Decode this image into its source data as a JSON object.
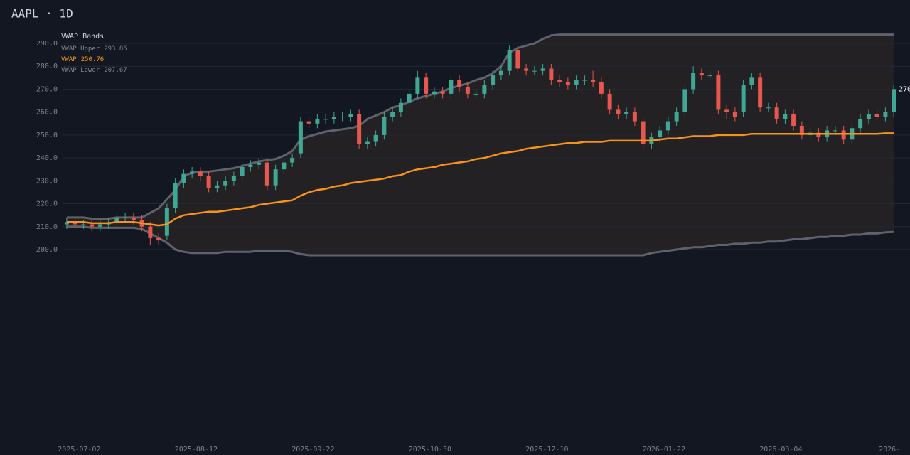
{
  "chart_data": {
    "type": "candlestick",
    "title": "AAPL · 1D",
    "legend_title": "VWAP Bands",
    "categories": [
      null,
      null,
      "2025-07-02",
      null,
      null,
      null,
      null,
      null,
      null,
      null,
      null,
      null,
      null,
      null,
      null,
      null,
      "2025-08-12",
      null,
      null,
      null,
      null,
      null,
      null,
      null,
      null,
      null,
      null,
      null,
      null,
      null,
      "2025-09-22",
      null,
      null,
      null,
      null,
      null,
      null,
      null,
      null,
      null,
      null,
      null,
      null,
      null,
      "2025-10-30",
      null,
      null,
      null,
      null,
      null,
      null,
      null,
      null,
      null,
      null,
      null,
      null,
      null,
      "2025-12-10",
      null,
      null,
      null,
      null,
      null,
      null,
      null,
      null,
      null,
      null,
      null,
      null,
      null,
      "2026-01-22",
      null,
      null,
      null,
      null,
      null,
      null,
      null,
      null,
      null,
      null,
      null,
      null,
      null,
      "2026-03-04",
      null,
      null,
      null,
      null,
      null,
      null,
      null,
      null,
      null,
      null,
      null,
      null,
      "2026-"
    ],
    "candles": {
      "up_color": "#3ea894",
      "down_color": "#e5574f",
      "open": [
        211,
        212,
        211,
        211,
        210,
        211,
        212,
        214,
        214,
        213,
        210,
        205,
        206,
        218,
        229,
        233,
        234,
        232,
        227,
        228,
        230,
        232,
        236,
        237,
        238,
        228,
        235,
        238,
        242,
        256,
        255,
        257,
        257,
        258,
        258,
        259,
        246,
        247,
        250,
        258,
        260,
        264,
        268,
        275,
        268,
        269,
        268,
        274,
        271,
        268,
        268,
        272,
        276,
        278,
        287,
        279,
        278,
        278,
        279,
        274,
        273,
        272,
        274,
        274,
        273,
        268,
        261,
        259,
        260,
        256,
        246,
        249,
        252,
        256,
        260,
        270,
        277,
        276,
        276,
        261,
        260,
        260,
        272,
        275,
        262,
        262,
        257,
        259,
        254,
        250,
        251,
        249,
        252,
        252,
        248,
        253,
        257,
        259,
        258,
        260
      ],
      "high": [
        214,
        214,
        213,
        213,
        213,
        214,
        216,
        216,
        216,
        215,
        212,
        207,
        220,
        231,
        235,
        236,
        236,
        234,
        230,
        232,
        234,
        238,
        239,
        240,
        240,
        237,
        240,
        242,
        258,
        258,
        259,
        259,
        260,
        260,
        261,
        261,
        249,
        252,
        260,
        262,
        266,
        270,
        278,
        277,
        271,
        271,
        276,
        276,
        273,
        270,
        274,
        278,
        280,
        289,
        289,
        281,
        280,
        281,
        281,
        276,
        275,
        276,
        276,
        278,
        275,
        270,
        263,
        262,
        262,
        258,
        251,
        254,
        258,
        262,
        272,
        280,
        279,
        278,
        278,
        263,
        262,
        274,
        277,
        277,
        264,
        264,
        261,
        261,
        256,
        253,
        253,
        254,
        254,
        254,
        255,
        259,
        261,
        261,
        262,
        272
      ],
      "low": [
        209,
        209,
        209,
        208,
        208,
        209,
        210,
        212,
        211,
        208,
        202,
        202,
        204,
        216,
        227,
        231,
        230,
        225,
        225,
        226,
        228,
        230,
        234,
        235,
        226,
        226,
        233,
        236,
        240,
        253,
        253,
        255,
        255,
        256,
        256,
        244,
        244,
        245,
        248,
        256,
        258,
        262,
        266,
        266,
        266,
        266,
        266,
        269,
        266,
        266,
        266,
        270,
        274,
        276,
        277,
        276,
        276,
        276,
        272,
        271,
        270,
        270,
        272,
        271,
        266,
        259,
        257,
        257,
        254,
        244,
        244,
        247,
        250,
        254,
        258,
        268,
        274,
        274,
        259,
        257,
        256,
        258,
        270,
        260,
        260,
        255,
        255,
        252,
        248,
        248,
        247,
        247,
        250,
        246,
        246,
        251,
        255,
        256,
        256,
        258
      ],
      "close": [
        212,
        211,
        211,
        210,
        211,
        212,
        214,
        214,
        213,
        210,
        205,
        204,
        218,
        229,
        233,
        234,
        232,
        227,
        228,
        230,
        232,
        236,
        237,
        238,
        228,
        235,
        238,
        240,
        256,
        255,
        257,
        257,
        258,
        258,
        259,
        246,
        247,
        250,
        258,
        260,
        264,
        268,
        275,
        268,
        269,
        268,
        274,
        271,
        268,
        268,
        272,
        276,
        278,
        287,
        279,
        278,
        278,
        279,
        274,
        273,
        272,
        274,
        274,
        273,
        268,
        261,
        259,
        260,
        256,
        246,
        249,
        252,
        256,
        260,
        270,
        277,
        276,
        276,
        261,
        260,
        258,
        272,
        275,
        262,
        262,
        257,
        259,
        254,
        250,
        251,
        249,
        252,
        252,
        248,
        253,
        257,
        259,
        258,
        260,
        270
      ]
    },
    "series": [
      {
        "name": "VWAP Upper",
        "color": "#5f626b",
        "values": [
          214,
          214,
          214,
          213.5,
          213.5,
          213.5,
          214,
          214,
          214,
          214,
          216,
          218,
          222,
          226,
          232,
          233.5,
          234,
          234,
          234.5,
          235,
          235.5,
          236.5,
          237.5,
          238.5,
          239,
          239.5,
          241,
          243,
          248,
          249.5,
          250.5,
          251.5,
          252,
          252.5,
          253,
          254,
          257,
          258.5,
          260,
          262,
          263,
          264.5,
          266,
          267,
          268,
          269,
          270.5,
          271.5,
          272.5,
          274,
          275,
          277,
          280,
          286,
          288,
          289,
          290,
          292,
          293.5,
          293.86,
          293.86,
          293.86,
          293.86,
          293.86,
          293.86,
          293.86,
          293.86,
          293.86,
          293.86,
          293.86,
          293.86,
          293.86,
          293.86,
          293.86,
          293.86,
          293.86,
          293.86,
          293.86,
          293.86,
          293.86,
          293.86,
          293.86,
          293.86,
          293.86,
          293.86,
          293.86,
          293.86,
          293.86,
          293.86,
          293.86,
          293.86,
          293.86,
          293.86,
          293.86,
          293.86,
          293.86,
          293.86,
          293.86,
          293.86,
          293.86
        ]
      },
      {
        "name": "VWAP",
        "color": "#f7931a",
        "values": [
          212,
          212,
          212,
          211.5,
          211.5,
          211.5,
          212,
          212,
          212,
          211.5,
          211,
          210.5,
          211,
          213.5,
          215,
          215.5,
          216,
          216.5,
          216.5,
          217,
          217.5,
          218,
          218.5,
          219.5,
          220,
          220.5,
          221,
          221.5,
          223.5,
          225,
          226,
          226.5,
          227.5,
          228,
          229,
          229.5,
          230,
          230.5,
          231,
          232,
          232.5,
          234,
          235,
          235.5,
          236,
          237,
          237.5,
          238,
          238.5,
          239.5,
          240,
          241,
          242,
          242.5,
          243,
          244,
          244.5,
          245,
          245.5,
          246,
          246.5,
          246.5,
          247,
          247,
          247,
          247.5,
          247.5,
          247.5,
          247.5,
          247.5,
          247.5,
          248,
          248.5,
          248.5,
          249,
          249.5,
          249.5,
          249.5,
          250,
          250,
          250,
          250,
          250.5,
          250.5,
          250.5,
          250.5,
          250.5,
          250.5,
          250.5,
          250.5,
          250.5,
          250.5,
          250.5,
          250.5,
          250.5,
          250.5,
          250.5,
          250.5,
          250.76,
          250.76
        ]
      },
      {
        "name": "VWAP Lower",
        "color": "#5f626b",
        "values": [
          210,
          210,
          210,
          209.5,
          209.5,
          209.5,
          209.5,
          209.5,
          209.5,
          209,
          207,
          205,
          203,
          200,
          199,
          198.5,
          198.5,
          198.5,
          198.5,
          199,
          199,
          199,
          199,
          199.5,
          199.5,
          199.5,
          199.5,
          199,
          198,
          197.5,
          197.5,
          197.5,
          197.5,
          197.5,
          197.5,
          197.5,
          197.5,
          197.5,
          197.5,
          197.5,
          197.5,
          197.5,
          197.5,
          197.5,
          197.5,
          197.5,
          197.5,
          197.5,
          197.5,
          197.5,
          197.5,
          197.5,
          197.5,
          197.5,
          197.5,
          197.5,
          197.5,
          197.5,
          197.5,
          197.5,
          197.5,
          197.5,
          197.5,
          197.5,
          197.5,
          197.5,
          197.5,
          197.5,
          197.5,
          197.5,
          198.5,
          199,
          199.5,
          200,
          200.5,
          201,
          201,
          201.5,
          202,
          202,
          202.5,
          202.5,
          203,
          203,
          203.5,
          203.5,
          204,
          204.5,
          204.5,
          205,
          205.5,
          205.5,
          206,
          206,
          206.5,
          206.5,
          207,
          207,
          207.5,
          207.67
        ]
      }
    ],
    "ylim": [
      197,
      294
    ],
    "yticks": [
      {
        "value": 200,
        "label": "200.0"
      },
      {
        "value": 210,
        "label": "210.0"
      },
      {
        "value": 220,
        "label": "220.0"
      },
      {
        "value": 230,
        "label": "230.0"
      },
      {
        "value": 240,
        "label": "240.0"
      },
      {
        "value": 250,
        "label": "250.0"
      },
      {
        "value": 260,
        "label": "260.0"
      },
      {
        "value": 270,
        "label": "270.0"
      },
      {
        "value": 280,
        "label": "280.0"
      },
      {
        "value": 290,
        "label": "290.0"
      }
    ],
    "grid": true
  }
}
